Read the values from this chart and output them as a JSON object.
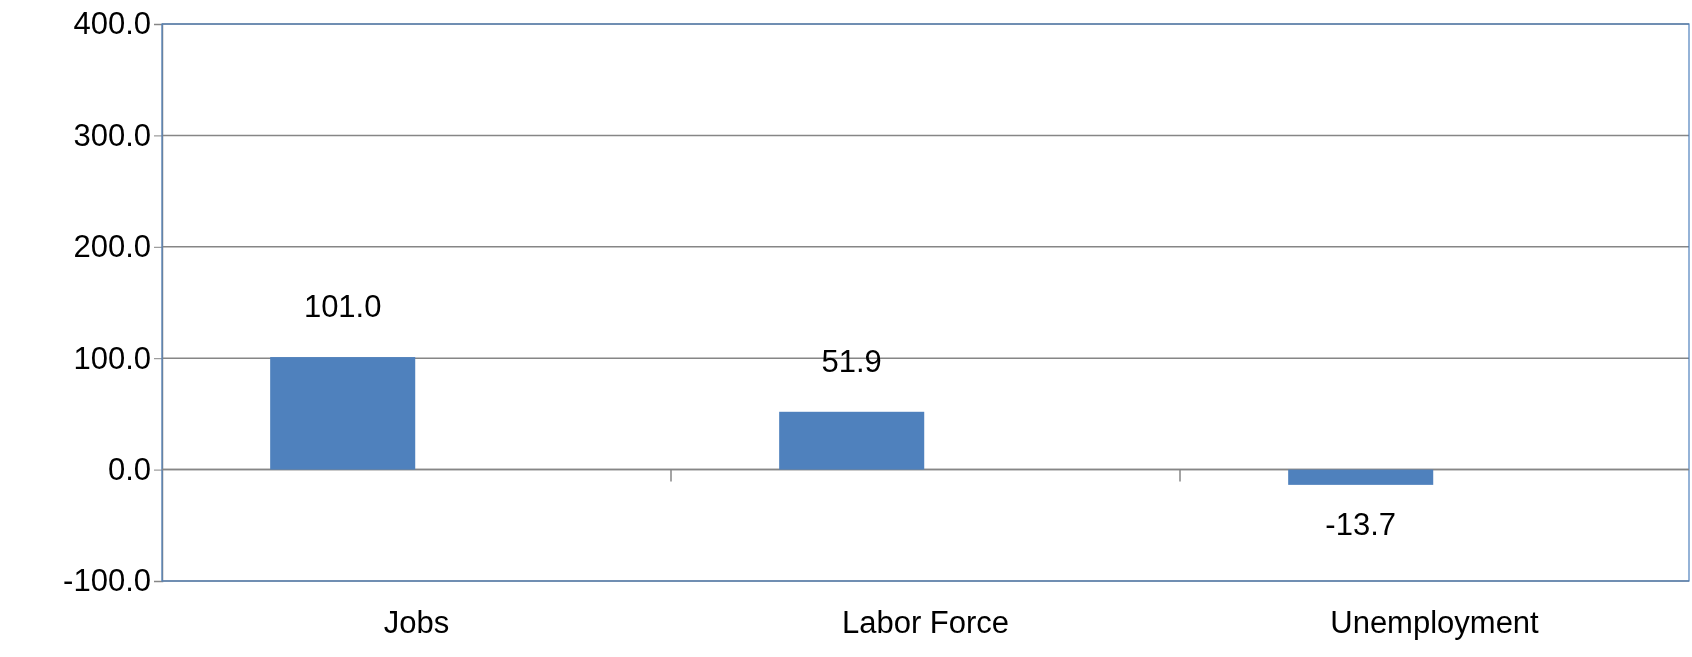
{
  "chart_data": {
    "type": "bar",
    "categories": [
      "Jobs",
      "Labor Force",
      "Unemployment"
    ],
    "series": [
      {
        "color": "#4f81bd",
        "values": [
          101.0,
          51.9,
          -13.7
        ],
        "value_labels": [
          "101.0",
          "51.9",
          "-13.7"
        ]
      }
    ],
    "ylim": [
      -100,
      400
    ],
    "yticks": [
      {
        "value": -100,
        "label": "-100.0"
      },
      {
        "value": 0,
        "label": "0.0"
      },
      {
        "value": 100,
        "label": "100.0"
      },
      {
        "value": 200,
        "label": "200.0"
      },
      {
        "value": 300,
        "label": "300.0"
      },
      {
        "value": 400,
        "label": "400.0"
      }
    ],
    "grid": "y"
  }
}
